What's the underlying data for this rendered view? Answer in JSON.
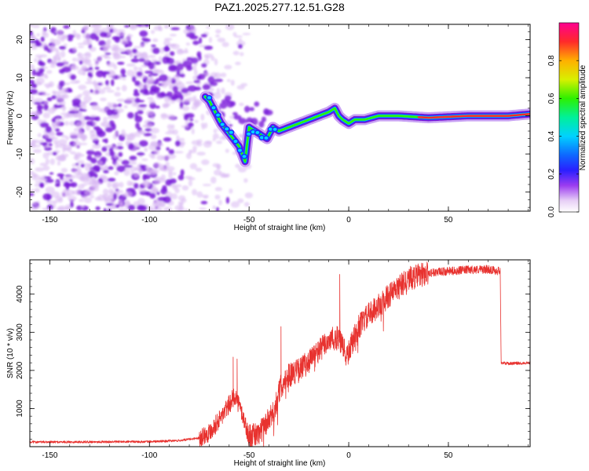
{
  "title": "PAZ1.2025.277.12.51.G28",
  "colors": {
    "snr_line": "#e8322f",
    "ridge": "#ff2a2a",
    "noise_light": "#d9b8f2",
    "noise_dark": "#7a1bd9"
  },
  "chart_data": [
    {
      "type": "heatmap",
      "name": "spectrogram",
      "xlabel": "Height of straight line (km)",
      "ylabel": "Frequency (Hz)",
      "xlim": [
        -160,
        91
      ],
      "ylim": [
        -25,
        24
      ],
      "xticks": [
        -150,
        -100,
        -50,
        0,
        50
      ],
      "yticks": [
        -20,
        -10,
        0,
        10,
        20
      ],
      "xtick_labels": [
        "-150",
        "-100",
        "-50",
        "0",
        "50"
      ],
      "ytick_labels": [
        "-20",
        "-10",
        "0",
        "10",
        "20"
      ],
      "ridge": {
        "x": [
          -72,
          -70,
          -67,
          -64,
          -61,
          -58,
          -55,
          -52,
          -50,
          -47,
          -44,
          -41,
          -38,
          -35,
          -30,
          -25,
          -20,
          -15,
          -10,
          -7,
          -5,
          -3,
          0,
          3,
          8,
          15,
          25,
          40,
          60,
          80,
          91
        ],
        "y": [
          5,
          4,
          1,
          -2,
          -4,
          -6,
          -8,
          -12,
          -3,
          -4,
          -5,
          -6,
          -3,
          -4,
          -3,
          -2,
          -1,
          0,
          1,
          2,
          0,
          -1,
          -2,
          -1,
          -1,
          0,
          0,
          -0.5,
          0,
          0,
          0.5
        ]
      },
      "colorbar": {
        "label": "Normalized spectral amplitude",
        "range": [
          0,
          1
        ],
        "ticks": [
          0,
          0.2,
          0.4,
          0.6,
          0.8
        ],
        "tick_labels": [
          "0.0",
          "0.2",
          "0.4",
          "0.6",
          "0.8"
        ]
      }
    },
    {
      "type": "line",
      "name": "snr",
      "xlabel": "Height of straight line (km)",
      "ylabel": "SNR (10 * v/v)",
      "xlim": [
        -160,
        91
      ],
      "ylim": [
        0,
        4900
      ],
      "xticks": [
        -150,
        -100,
        -50,
        0,
        50
      ],
      "yticks": [
        1000,
        2000,
        3000,
        4000
      ],
      "xtick_labels": [
        "-150",
        "-100",
        "-50",
        "0",
        "50"
      ],
      "ytick_labels": [
        "1000",
        "2000",
        "3000",
        "4000"
      ],
      "profile": {
        "x": [
          -160,
          -100,
          -85,
          -75,
          -70,
          -65,
          -60,
          -57,
          -54,
          -50,
          -45,
          -38,
          -34,
          -30,
          -25,
          -20,
          -15,
          -10,
          -5,
          -1,
          5,
          10,
          15,
          20,
          30,
          40,
          50,
          60,
          70,
          76,
          76.5,
          80,
          91
        ],
        "y": [
          120,
          130,
          160,
          230,
          380,
          700,
          1100,
          1350,
          950,
          250,
          350,
          850,
          1600,
          1900,
          2000,
          2250,
          2500,
          2800,
          2850,
          2350,
          3150,
          3450,
          3700,
          3950,
          4400,
          4560,
          4600,
          4640,
          4650,
          4600,
          2200,
          2180,
          2200
        ]
      },
      "spikes": [
        {
          "x": -58,
          "y": 2350
        },
        {
          "x": -56,
          "y": 2300
        },
        {
          "x": -34,
          "y": 3150
        },
        {
          "x": -4.5,
          "y": 4520
        },
        {
          "x": 76,
          "y": 4680
        }
      ]
    }
  ]
}
